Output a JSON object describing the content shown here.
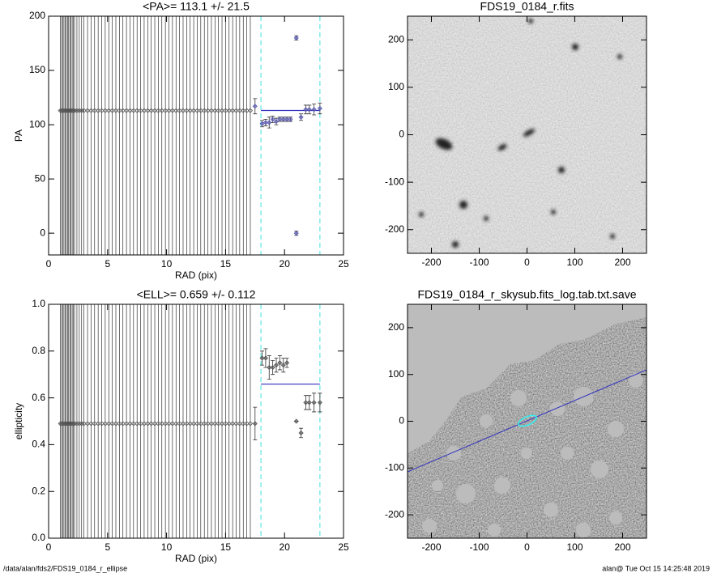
{
  "chart_data": [
    {
      "type": "scatter",
      "title": "<PA>= 113.1 +/-  21.5",
      "xlabel": "RAD (pix)",
      "ylabel": "PA",
      "xlim": [
        0,
        25
      ],
      "xticks": [
        0,
        5,
        10,
        15,
        20,
        25
      ],
      "ylim": [
        -20,
        200
      ],
      "yticks": [
        0,
        50,
        100,
        150,
        200
      ],
      "vlines": [
        18,
        23
      ],
      "mean": 113.1,
      "radius_lines": true,
      "series": [
        {
          "color": "#555555",
          "x": [
            1.0,
            1.1,
            1.2,
            1.3,
            1.4,
            1.5,
            1.6,
            1.7,
            1.8,
            1.9,
            2.0,
            2.1,
            2.2,
            2.4,
            2.6,
            2.8,
            3.0,
            3.3,
            3.6,
            3.9,
            4.2,
            4.5,
            4.8,
            5.1,
            5.4,
            5.7,
            6.0,
            6.3,
            6.6,
            6.9,
            7.2,
            7.5,
            7.8,
            8.1,
            8.4,
            8.7,
            9.0,
            9.3,
            9.6,
            9.9,
            10.2,
            10.5,
            10.8,
            11.1,
            11.4,
            11.7,
            12.0,
            12.3,
            12.6,
            12.9,
            13.2,
            13.5,
            13.8,
            14.1,
            14.4,
            14.7,
            15.0,
            15.3,
            15.6,
            15.9,
            16.2,
            16.5,
            16.8,
            17.1
          ],
          "values": [
            113,
            113,
            113,
            113,
            113,
            113,
            113,
            113,
            113,
            113,
            113,
            113,
            113,
            113,
            113,
            113,
            113,
            113,
            113,
            113,
            113,
            113,
            113,
            113,
            113,
            113,
            113,
            113,
            113,
            113,
            113,
            113,
            113,
            113,
            113,
            113,
            113,
            113,
            113,
            113,
            113,
            113,
            113,
            113,
            113,
            113,
            113,
            113,
            113,
            113,
            113,
            113,
            113,
            113,
            113,
            113,
            113,
            113,
            113,
            113,
            113,
            113,
            113,
            113
          ]
        },
        {
          "color": "#5a5ab4",
          "x": [
            17.5,
            18.1,
            18.4,
            18.7,
            19.0,
            19.3,
            19.6,
            19.9,
            20.2,
            20.5,
            21.0,
            21.0,
            21.4,
            21.8,
            22.1,
            22.5,
            23.0
          ],
          "values": [
            117,
            101,
            102,
            102,
            105,
            103,
            105,
            105,
            105,
            105,
            180,
            0,
            107,
            114,
            114,
            114,
            115
          ],
          "errors": [
            7,
            3,
            3,
            5,
            3,
            3,
            2,
            2,
            2,
            2,
            2,
            2,
            3,
            4,
            4,
            5,
            5
          ]
        }
      ]
    },
    {
      "type": "image",
      "title": "FDS19_0184_r.fits",
      "xlim": [
        -250,
        250
      ],
      "xticks": [
        -200,
        -100,
        0,
        100,
        200
      ],
      "ylim": [
        -250,
        250
      ],
      "yticks": [
        -200,
        -100,
        0,
        100,
        200
      ]
    },
    {
      "type": "scatter",
      "title": "<ELL>= 0.659 +/-  0.112",
      "xlabel": "RAD (pix)",
      "ylabel": "ellipticity",
      "xlim": [
        0,
        25
      ],
      "xticks": [
        0,
        5,
        10,
        15,
        20,
        25
      ],
      "ylim": [
        0,
        1
      ],
      "yticks": [
        {
          "value": 0,
          "label": "0.0"
        },
        0.2,
        0.4,
        0.6,
        0.8,
        {
          "value": 1,
          "label": "1.0"
        }
      ],
      "vlines": [
        18,
        23
      ],
      "mean": 0.659,
      "radius_lines": true,
      "series": [
        {
          "color": "#555555",
          "x": [
            1.0,
            1.1,
            1.2,
            1.3,
            1.4,
            1.5,
            1.6,
            1.7,
            1.8,
            1.9,
            2.0,
            2.1,
            2.2,
            2.4,
            2.6,
            2.8,
            3.0,
            3.3,
            3.6,
            3.9,
            4.2,
            4.5,
            4.8,
            5.1,
            5.4,
            5.7,
            6.0,
            6.3,
            6.6,
            6.9,
            7.2,
            7.5,
            7.8,
            8.1,
            8.4,
            8.7,
            9.0,
            9.3,
            9.6,
            9.9,
            10.2,
            10.5,
            10.8,
            11.1,
            11.4,
            11.7,
            12.0,
            12.3,
            12.6,
            12.9,
            13.2,
            13.5,
            13.8,
            14.1,
            14.4,
            14.7,
            15.0,
            15.3,
            15.6,
            15.9,
            16.2,
            16.5,
            16.8,
            17.1
          ],
          "values": [
            0.49,
            0.49,
            0.49,
            0.49,
            0.49,
            0.49,
            0.49,
            0.49,
            0.49,
            0.49,
            0.49,
            0.49,
            0.49,
            0.49,
            0.49,
            0.49,
            0.49,
            0.49,
            0.49,
            0.49,
            0.49,
            0.49,
            0.49,
            0.49,
            0.49,
            0.49,
            0.49,
            0.49,
            0.49,
            0.49,
            0.49,
            0.49,
            0.49,
            0.49,
            0.49,
            0.49,
            0.49,
            0.49,
            0.49,
            0.49,
            0.49,
            0.49,
            0.49,
            0.49,
            0.49,
            0.49,
            0.49,
            0.49,
            0.49,
            0.49,
            0.49,
            0.49,
            0.49,
            0.49,
            0.49,
            0.49,
            0.49,
            0.49,
            0.49,
            0.49,
            0.49,
            0.49,
            0.49,
            0.49
          ]
        },
        {
          "color": "#555555",
          "x": [
            17.5,
            18.1,
            18.4,
            18.7,
            19.0,
            19.3,
            19.6,
            19.9,
            20.2,
            21.0,
            21.4,
            21.8,
            22.1,
            22.5,
            23.0
          ],
          "values": [
            0.49,
            0.77,
            0.77,
            0.73,
            0.73,
            0.74,
            0.75,
            0.74,
            0.75,
            0.5,
            0.45,
            0.58,
            0.58,
            0.58,
            0.58
          ],
          "errors": [
            0.07,
            0.03,
            0.04,
            0.05,
            0.03,
            0.03,
            0.03,
            0.03,
            0.02,
            0,
            0.02,
            0.03,
            0.03,
            0.04,
            0.04
          ]
        }
      ]
    },
    {
      "type": "image",
      "title": "FDS19_0184_r_skysub.fits_log.tab.txt.save",
      "xlim": [
        -250,
        250
      ],
      "xticks": [
        -200,
        -100,
        0,
        100,
        200
      ],
      "ylim": [
        -250,
        250
      ],
      "yticks": [
        -200,
        -100,
        0,
        100,
        200
      ]
    }
  ],
  "footer": {
    "left": "/data/alan/fds2/FDS19_0184_r_ellipse",
    "right": "alan@  Tue Oct 15 14:25:48 2019"
  }
}
